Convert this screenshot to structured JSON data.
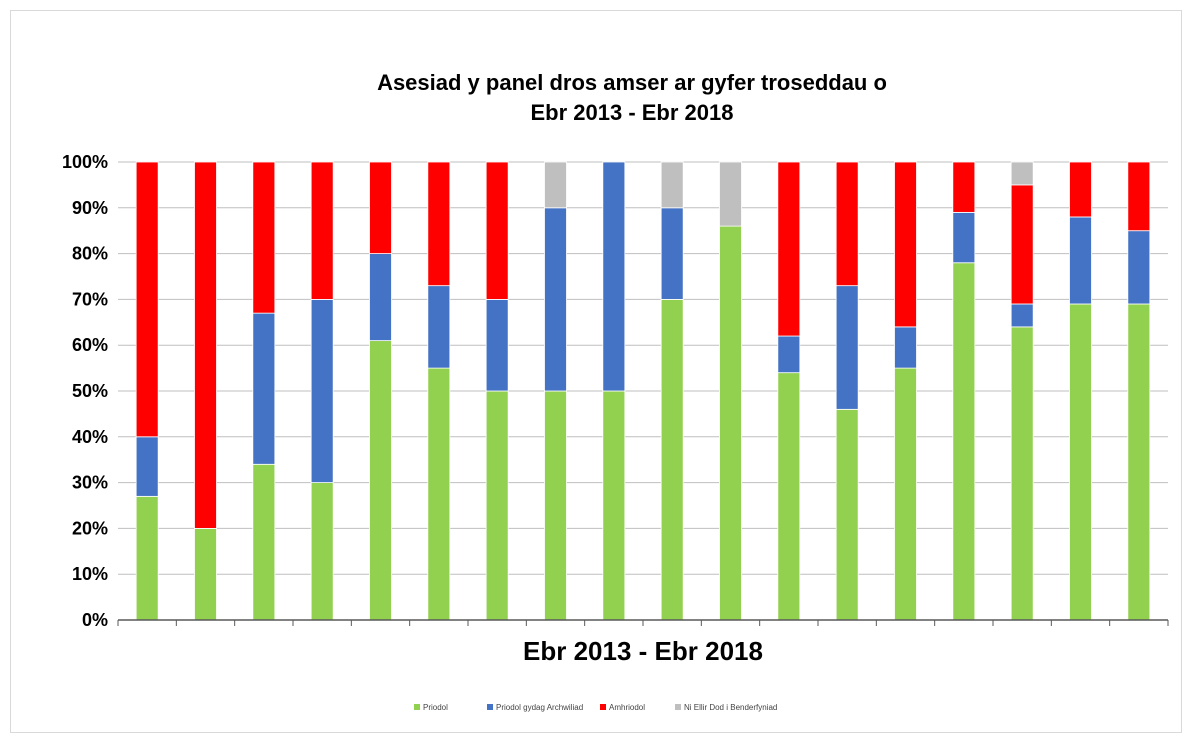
{
  "chart_data": {
    "type": "bar",
    "stacked": true,
    "title": [
      "Asesiad y panel dros amser ar gyfer troseddau o",
      "Ebr 2013 - Ebr 2018"
    ],
    "xlabel": "Ebr 2013 - Ebr 2018",
    "ylabel": "",
    "ylim": [
      0,
      100
    ],
    "yticks": [
      "0%",
      "10%",
      "20%",
      "30%",
      "40%",
      "50%",
      "60%",
      "70%",
      "80%",
      "90%",
      "100%"
    ],
    "grid": true,
    "legend_position": "bottom",
    "series": [
      {
        "name": "Priodol",
        "color": "#92d050",
        "values": [
          27,
          20,
          34,
          30,
          61,
          55,
          50,
          50,
          50,
          70,
          86,
          54,
          46,
          55,
          78,
          64,
          69,
          69
        ]
      },
      {
        "name": "Priodol gydag Archwiliad",
        "color": "#4472c4",
        "values": [
          13,
          0,
          33,
          40,
          19,
          18,
          20,
          40,
          50,
          20,
          0,
          8,
          27,
          9,
          11,
          5,
          19,
          16
        ]
      },
      {
        "name": "Amhriodol",
        "color": "#ff0000",
        "values": [
          60,
          80,
          33,
          30,
          20,
          27,
          30,
          0,
          0,
          0,
          0,
          38,
          27,
          36,
          11,
          26,
          12,
          15
        ]
      },
      {
        "name": "Ni Ellir Dod i Benderfyniad",
        "color": "#bfbfbf",
        "values": [
          0,
          0,
          0,
          0,
          0,
          0,
          0,
          10,
          0,
          10,
          14,
          0,
          0,
          0,
          0,
          5,
          0,
          0
        ]
      }
    ]
  }
}
